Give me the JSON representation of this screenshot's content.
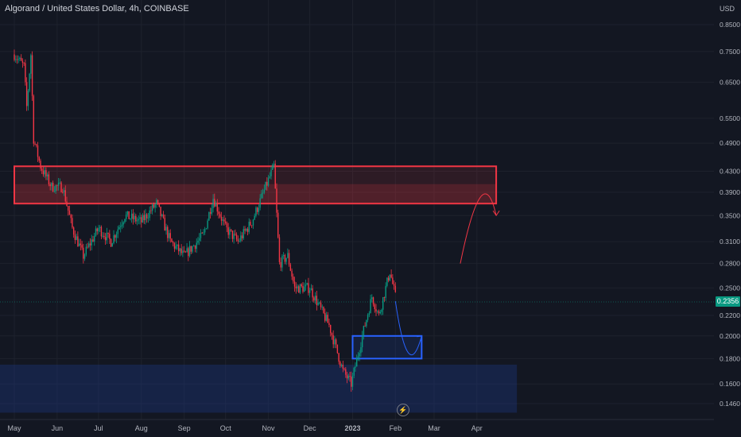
{
  "header": {
    "title": "Algorand / United States Dollar, 4h, COINBASE",
    "currency": "USD"
  },
  "last_price": "0.2356",
  "event_icon": "lightning-icon",
  "colors": {
    "background": "#131722",
    "up": "#089981",
    "down": "#f23645",
    "resistance_box": "#f23645",
    "support_box": "#2962ff",
    "demand_zone": "#1e3a8a"
  },
  "chart_data": {
    "type": "candlestick",
    "title": "Algorand / United States Dollar, 4h, COINBASE",
    "y_scale": "log",
    "y_ticks": [
      "0.8500",
      "0.7500",
      "0.6500",
      "0.5500",
      "0.4900",
      "0.4300",
      "0.3900",
      "0.3500",
      "0.3100",
      "0.2800",
      "0.2500",
      "0.2200",
      "0.2000",
      "0.1800",
      "0.1600",
      "0.1460"
    ],
    "x_ticks": [
      "May",
      "Jun",
      "Jul",
      "Aug",
      "Sep",
      "Oct",
      "Nov",
      "Dec",
      "2023",
      "Feb",
      "Mar",
      "Apr"
    ],
    "price_path": [
      [
        "2022-05-01",
        0.74
      ],
      [
        "2022-05-08",
        0.7
      ],
      [
        "2022-05-10",
        0.58
      ],
      [
        "2022-05-13",
        0.74
      ],
      [
        "2022-05-15",
        0.5
      ],
      [
        "2022-05-20",
        0.44
      ],
      [
        "2022-05-28",
        0.4
      ],
      [
        "2022-06-05",
        0.4
      ],
      [
        "2022-06-12",
        0.33
      ],
      [
        "2022-06-20",
        0.29
      ],
      [
        "2022-07-01",
        0.33
      ],
      [
        "2022-07-10",
        0.31
      ],
      [
        "2022-07-20",
        0.35
      ],
      [
        "2022-08-01",
        0.34
      ],
      [
        "2022-08-12",
        0.37
      ],
      [
        "2022-08-22",
        0.31
      ],
      [
        "2022-09-01",
        0.29
      ],
      [
        "2022-09-15",
        0.32
      ],
      [
        "2022-09-22",
        0.38
      ],
      [
        "2022-10-01",
        0.33
      ],
      [
        "2022-10-10",
        0.31
      ],
      [
        "2022-10-20",
        0.34
      ],
      [
        "2022-11-05",
        0.44
      ],
      [
        "2022-11-09",
        0.28
      ],
      [
        "2022-11-15",
        0.29
      ],
      [
        "2022-11-20",
        0.25
      ],
      [
        "2022-12-01",
        0.25
      ],
      [
        "2022-12-15",
        0.21
      ],
      [
        "2022-12-25",
        0.17
      ],
      [
        "2022-12-31",
        0.16
      ],
      [
        "2023-01-08",
        0.2
      ],
      [
        "2023-01-15",
        0.24
      ],
      [
        "2023-01-20",
        0.22
      ],
      [
        "2023-01-28",
        0.27
      ],
      [
        "2023-02-01",
        0.24
      ]
    ],
    "annotations": [
      {
        "type": "zone",
        "shape": "rectangle",
        "price_range": [
          0.37,
          0.44
        ],
        "time_range": [
          "2022-05-01",
          "2023-04-15"
        ],
        "color": "#f23645"
      },
      {
        "type": "zone",
        "shape": "rectangle",
        "price_range": [
          0.18,
          0.2
        ],
        "time_range": [
          "2023-01-01",
          "2023-02-20"
        ],
        "color": "#2962ff"
      },
      {
        "type": "zone",
        "shape": "band",
        "price_range": [
          0.14,
          0.175
        ],
        "time_range": [
          "2022-04-20",
          "2023-04-30"
        ],
        "color": "#1e3a8a"
      },
      {
        "type": "forecast-arrow",
        "color": "#f23645",
        "path": [
          [
            "2023-03-20",
            0.28
          ],
          [
            "2023-04-05",
            0.4
          ],
          [
            "2023-04-15",
            0.35
          ]
        ]
      },
      {
        "type": "forecast-arrow",
        "color": "#2962ff",
        "path": [
          [
            "2023-02-01",
            0.235
          ],
          [
            "2023-02-10",
            0.19
          ],
          [
            "2023-02-20",
            0.2
          ]
        ]
      }
    ]
  }
}
